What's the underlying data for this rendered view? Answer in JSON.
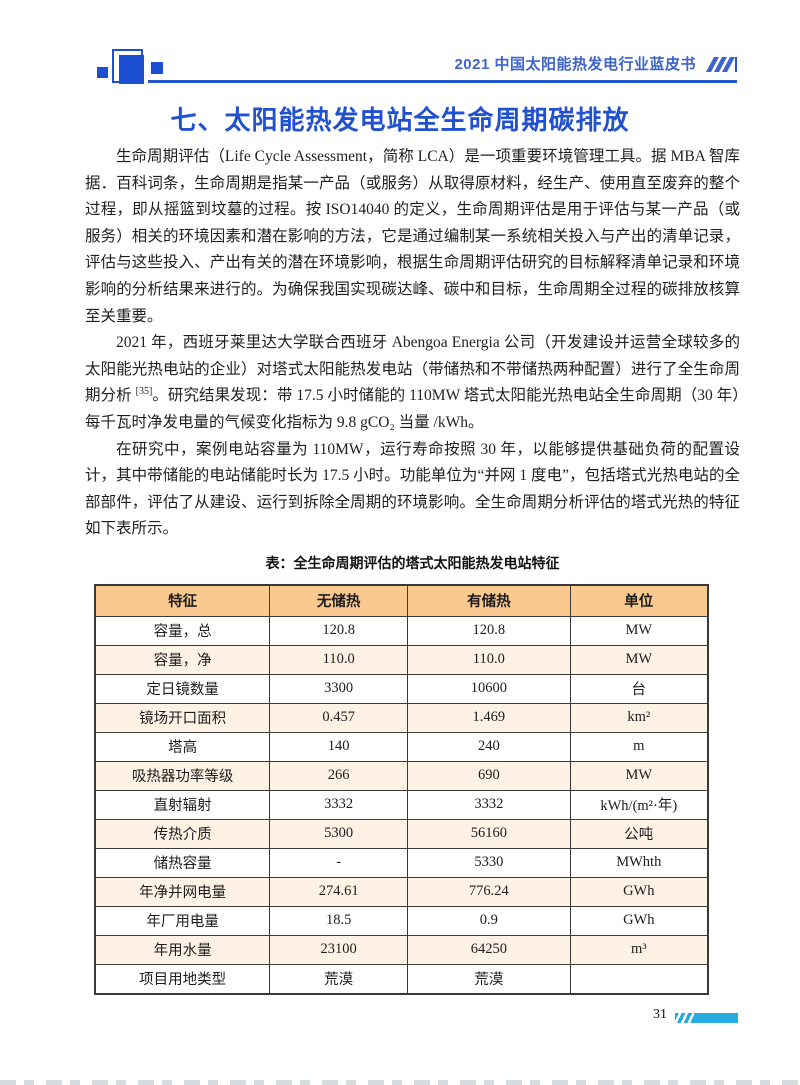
{
  "header": {
    "booklet_title": "2021 中国太阳能热发电行业蓝皮书"
  },
  "title": "七、太阳能热发电站全生命周期碳排放",
  "paragraphs": {
    "p1": "生命周期评估（Life Cycle Assessment，简称 LCA）是一项重要环境管理工具。据 MBA 智库据．百科词条，生命周期是指某一产品（或服务）从取得原材料，经生产、使用直至废弃的整个过程，即从摇篮到坟墓的过程。按 ISO14040 的定义，生命周期评估是用于评估与某一产品（或服务）相关的环境因素和潜在影响的方法，它是通过编制某一系统相关投入与产出的清单记录，评估与这些投入、产出有关的潜在环境影响，根据生命周期评估研究的目标解释清单记录和环境影响的分析结果来进行的。为确保我国实现碳达峰、碳中和目标，生命周期全过程的碳排放核算至关重要。",
    "p2_before_ref": "2021 年，西班牙莱里达大学联合西班牙 Abengoa Energia 公司（开发建设并运营全球较多的太阳能光热电站的企业）对塔式太阳能热发电站（带储热和不带储热两种配置）进行了全生命周期分析 ",
    "p2_ref": "[35]",
    "p2_after_ref": "。研究结果发现：带 17.5 小时储能的 110MW 塔式太阳能光热电站全生命周期（30 年）每千瓦时净发电量的气候变化指标为 9.8 gCO₂ 当量 /kWh。",
    "p3": "在研究中，案例电站容量为 110MW，运行寿命按照 30 年，以能够提供基础负荷的配置设计，其中带储能的电站储能时长为 17.5 小时。功能单位为“并网 1 度电”，包括塔式光热电站的全部部件，评估了从建设、运行到拆除全周期的环境影响。全生命周期分析评估的塔式光热的特征如下表所示。"
  },
  "table": {
    "caption": "表：全生命周期评估的塔式太阳能热发电站特征",
    "headers": [
      "特征",
      "无储热",
      "有储热",
      "单位"
    ],
    "rows": [
      [
        "容量，总",
        "120.8",
        "120.8",
        "MW"
      ],
      [
        "容量，净",
        "110.0",
        "110.0",
        "MW"
      ],
      [
        "定日镜数量",
        "3300",
        "10600",
        "台"
      ],
      [
        "镜场开口面积",
        "0.457",
        "1.469",
        "km²"
      ],
      [
        "塔高",
        "140",
        "240",
        "m"
      ],
      [
        "吸热器功率等级",
        "266",
        "690",
        "MW"
      ],
      [
        "直射辐射",
        "3332",
        "3332",
        "kWh/(m²·年)"
      ],
      [
        "传热介质",
        "5300",
        "56160",
        "公吨"
      ],
      [
        "储热容量",
        "-",
        "5330",
        "MWhth"
      ],
      [
        "年净并网电量",
        "274.61",
        "776.24",
        "GWh"
      ],
      [
        "年厂用电量",
        "18.5",
        "0.9",
        "GWh"
      ],
      [
        "年用水量",
        "23100",
        "64250",
        "m³"
      ],
      [
        "项目用地类型",
        "荒漠",
        "荒漠",
        ""
      ]
    ]
  },
  "footer": {
    "page_number": "31"
  },
  "colors": {
    "brand_blue": "#2353cd",
    "header_text_blue": "#3c64cc",
    "table_header_bg": "#f9c98f",
    "table_alt_row_bg": "#fdf2e4",
    "footer_bar_cyan": "#29abe2"
  }
}
